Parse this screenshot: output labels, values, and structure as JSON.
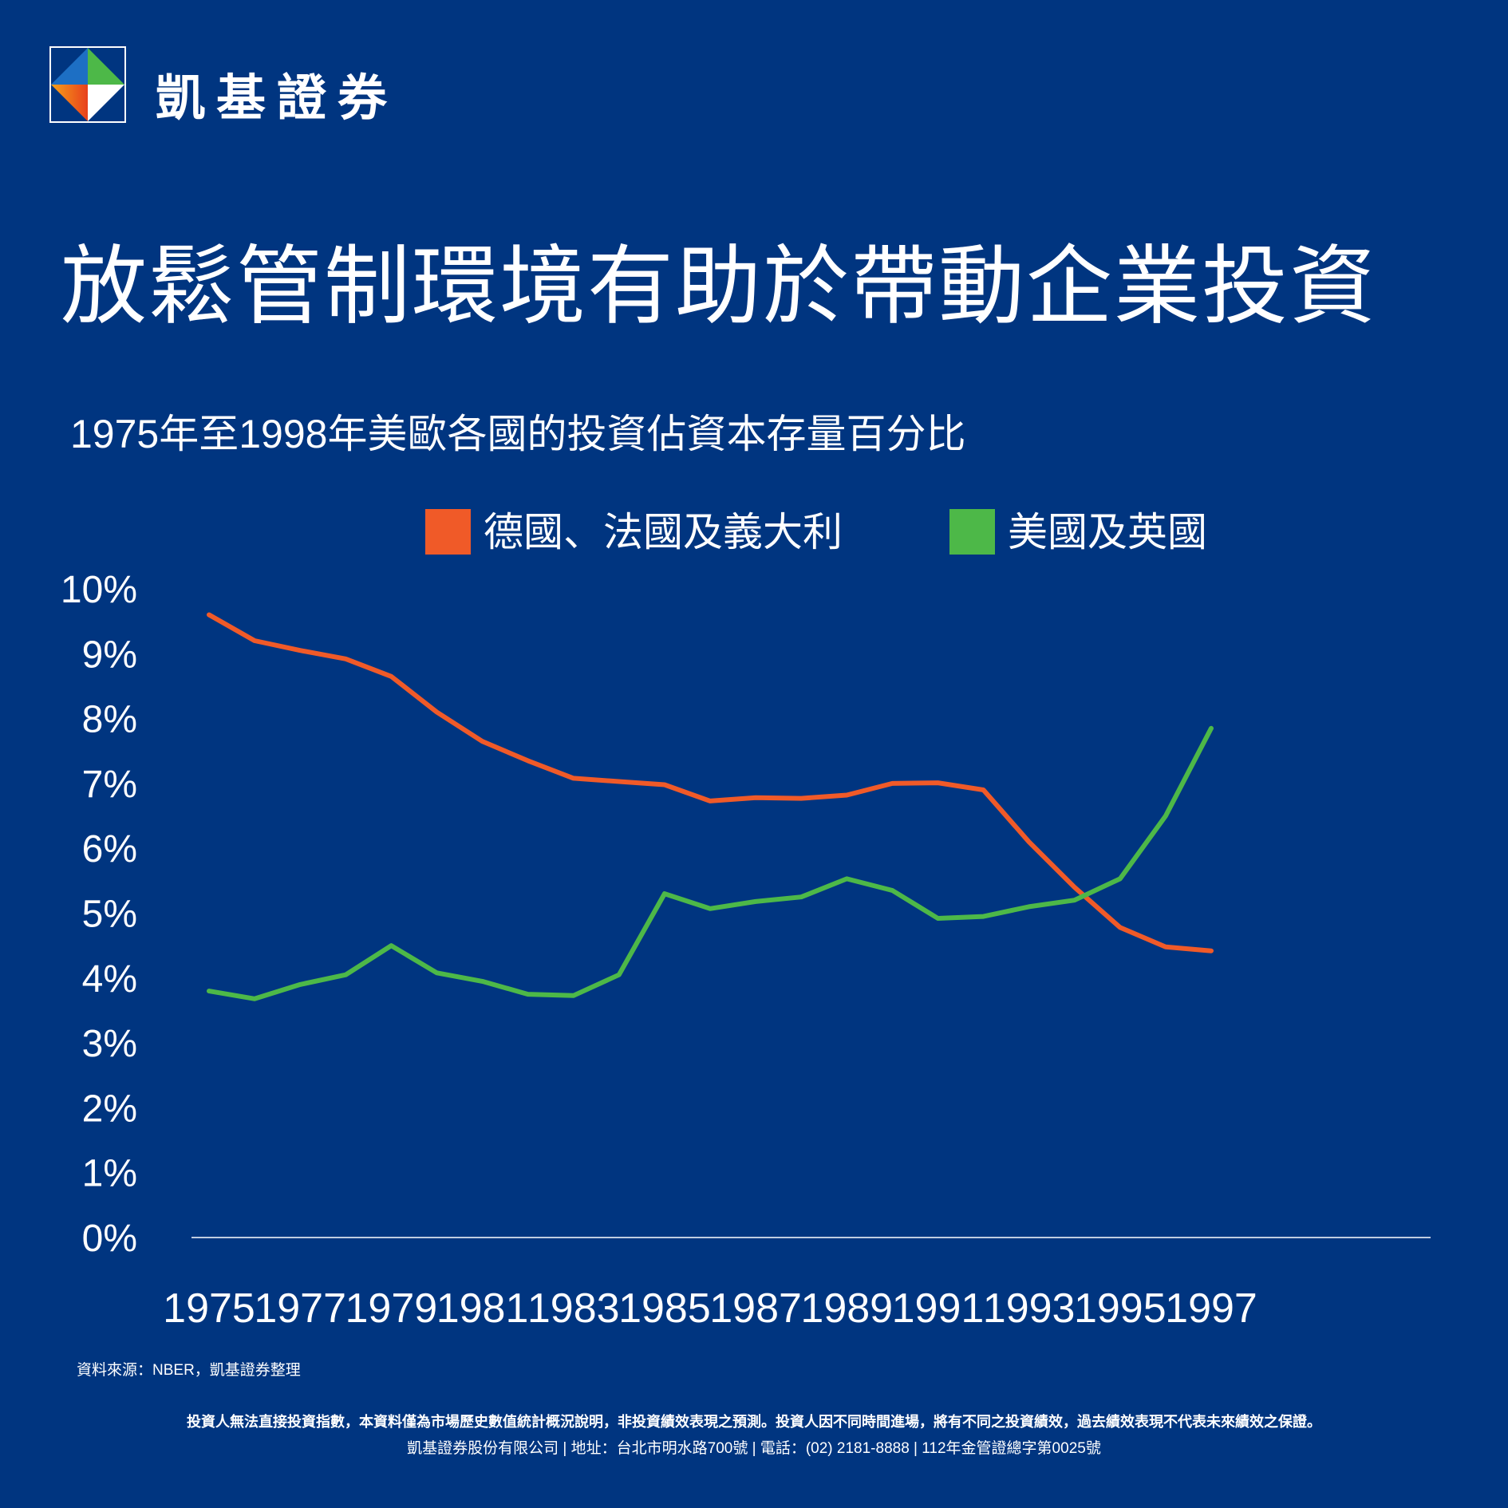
{
  "brand": {
    "name": "凱基證券",
    "logo": "kgi-diamond-logo"
  },
  "headline": "放鬆管制環境有助於帶動企業投資",
  "colors": {
    "background": "#003580",
    "series_a": "#f05a28",
    "series_b": "#4db848",
    "text": "#ffffff"
  },
  "chart_data": {
    "type": "line",
    "title": "1975年至1998年美歐各國的投資佔資本存量百分比",
    "legend_position": "top",
    "x": [
      1975,
      1976,
      1977,
      1978,
      1979,
      1980,
      1981,
      1982,
      1983,
      1984,
      1985,
      1986,
      1987,
      1988,
      1989,
      1990,
      1991,
      1992,
      1993,
      1994,
      1995,
      1996,
      1997
    ],
    "x_tick_labels": [
      "1975",
      "1977",
      "1979",
      "1981",
      "1983",
      "1985",
      "1987",
      "1989",
      "1991",
      "1993",
      "1995",
      "1997"
    ],
    "y_tick_labels": [
      "10%",
      "9%",
      "8%",
      "7%",
      "6%",
      "5%",
      "4%",
      "3%",
      "2%",
      "1%",
      "0%"
    ],
    "ylim": [
      0,
      10
    ],
    "grid": false,
    "series": [
      {
        "name": "德國、法國及義大利",
        "color": "#f05a28",
        "values": [
          9.6,
          9.2,
          9.05,
          8.92,
          8.65,
          8.1,
          7.65,
          7.35,
          7.08,
          7.03,
          6.98,
          6.73,
          6.78,
          6.77,
          6.82,
          7.0,
          7.01,
          6.9,
          6.1,
          5.4,
          4.78,
          4.48,
          4.42
        ]
      },
      {
        "name": "美國及英國",
        "color": "#4db848",
        "values": [
          3.8,
          3.68,
          3.9,
          4.05,
          4.5,
          4.08,
          3.95,
          3.75,
          3.73,
          4.05,
          5.3,
          5.07,
          5.18,
          5.25,
          5.53,
          5.35,
          4.92,
          4.95,
          5.1,
          5.2,
          5.53,
          6.5,
          7.85
        ]
      }
    ]
  },
  "footer": {
    "source": "資料來源：NBER，凱基證券整理",
    "disclaimer": "投資人無法直接投資指數，本資料僅為市場歷史數值統計概況說明，非投資績效表現之預測。投資人因不同時間進場，將有不同之投資績效，過去績效表現不代表未來績效之保證。",
    "company_info": "凱基證券股份有限公司 | 地址：台北市明水路700號 | 電話：(02) 2181-8888 | 112年金管證總字第0025號"
  }
}
